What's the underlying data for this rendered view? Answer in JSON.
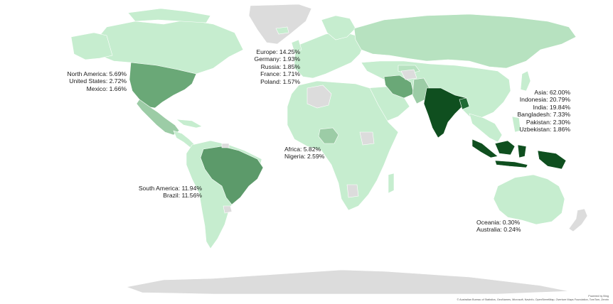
{
  "colors": {
    "land_default": "#c6edcf",
    "no_data": "#dcdcdc",
    "level_1": "#b7e2c0",
    "level_2": "#9ccca6",
    "level_3": "#6aa877",
    "level_4": "#5c9a6a",
    "level_5": "#1f6a33",
    "level_6": "#0f4f1f",
    "border": "#ffffff"
  },
  "regions": {
    "north_america": [
      "North America: 5.69%",
      "United States: 2.72%",
      "Mexico: 1.66%"
    ],
    "europe": [
      "Europe: 14.25%",
      "Germany:  1.93%",
      "Russia:  1.85%",
      "France:  1.71%",
      "Poland:  1.57%"
    ],
    "asia": [
      "Asia: 62.00%",
      "Indonesia: 20.79%",
      "India: 19.84%",
      "Bangladesh:  7.33%",
      "Pakistan:  2.30%",
      "Uzbekistan:  1.86%"
    ],
    "africa": [
      "Africa: 5.82%",
      "Nigeria: 2.59%"
    ],
    "south_america": [
      "South America: 11.94%",
      "Brazil: 11.56%"
    ],
    "oceania": [
      "Oceania: 0.30%",
      "Australia: 0.24%"
    ]
  },
  "credit": {
    "line1": "Powered by Bing",
    "line2": "© Australian Bureau of Statistics, GeoNames, Microsoft, Navinfo, OpenStreetMap, Overture Maps Foundation, TomTom, Zenrin"
  }
}
